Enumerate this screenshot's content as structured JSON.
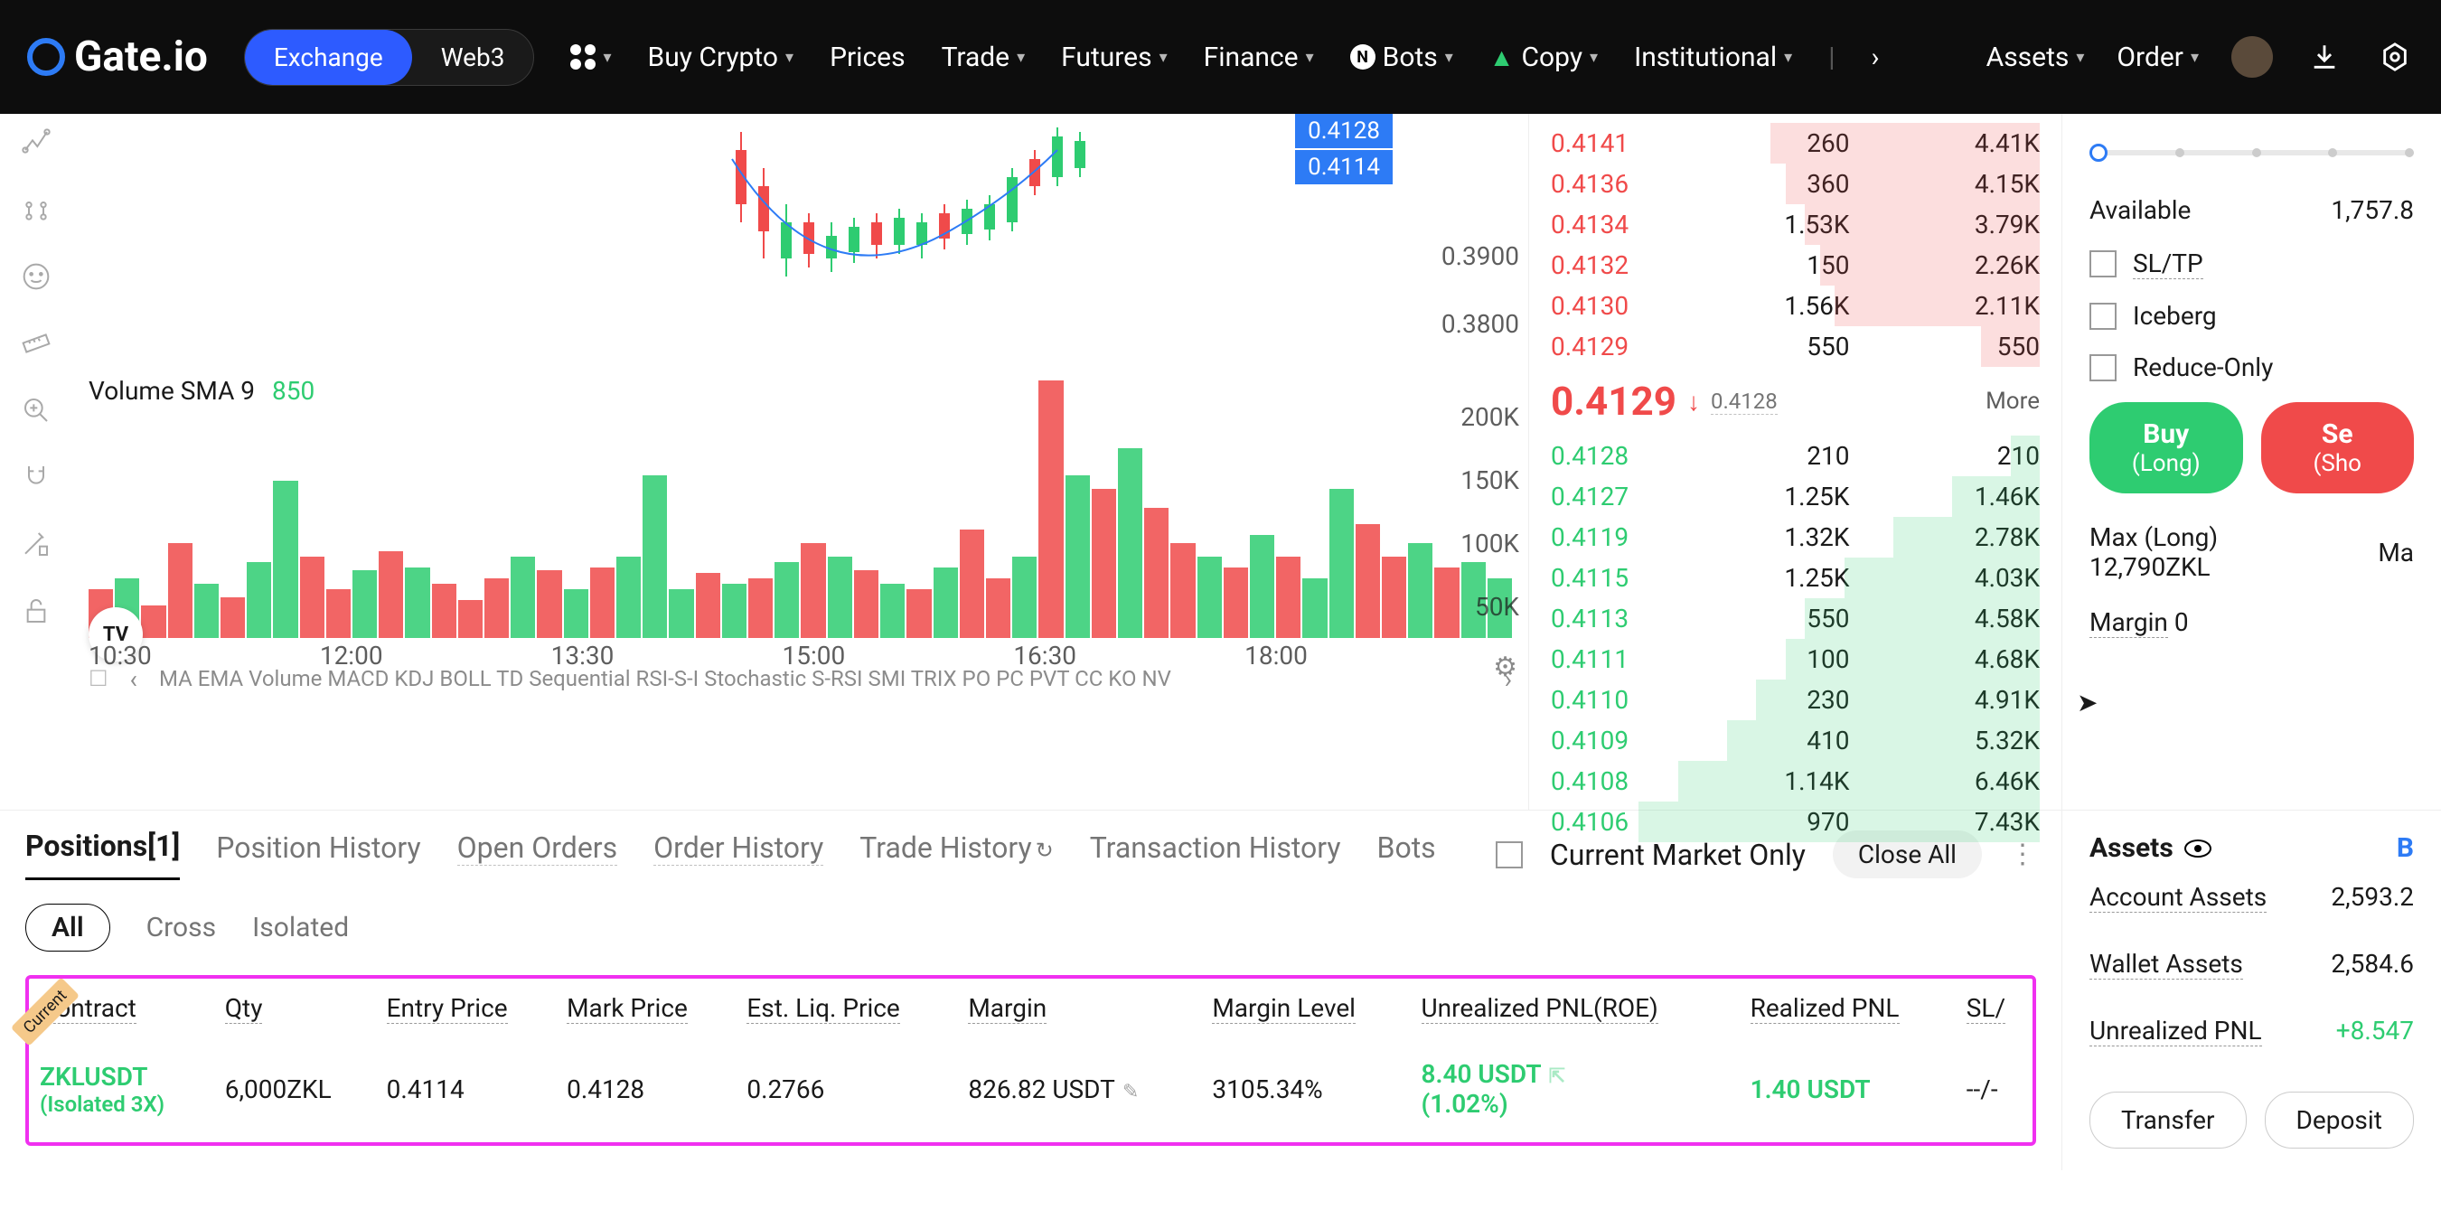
{
  "nav": {
    "brand": "Gate.io",
    "toggle": {
      "exchange": "Exchange",
      "web3": "Web3"
    },
    "items": [
      "Buy Crypto",
      "Prices",
      "Trade",
      "Futures",
      "Finance",
      "Bots",
      "Copy",
      "Institutional"
    ],
    "right": [
      "Assets",
      "Order"
    ]
  },
  "chart": {
    "price_tags": [
      "0.4128",
      "0.4114"
    ],
    "y_prices": [
      "0.3900",
      "0.3800"
    ],
    "vol_label": "Volume SMA 9",
    "vol_value": "850",
    "y_vol": [
      "200K",
      "150K",
      "100K",
      "50K"
    ],
    "times": [
      "10:30",
      "12:00",
      "13:30",
      "15:00",
      "16:30",
      "18:00"
    ],
    "indicators": [
      "MA",
      "EMA",
      "Volume",
      "MACD",
      "KDJ",
      "BOLL",
      "TD Sequential",
      "RSI-S-I",
      "Stochastic",
      "S-RSI",
      "SMI",
      "TRIX",
      "PO",
      "PC",
      "PVT",
      "CC",
      "KO",
      "NV"
    ],
    "vol_bars": [
      {
        "h": 18,
        "c": "#f04a4a"
      },
      {
        "h": 22,
        "c": "#2ecc71"
      },
      {
        "h": 12,
        "c": "#f04a4a"
      },
      {
        "h": 35,
        "c": "#f04a4a"
      },
      {
        "h": 20,
        "c": "#2ecc71"
      },
      {
        "h": 15,
        "c": "#f04a4a"
      },
      {
        "h": 28,
        "c": "#2ecc71"
      },
      {
        "h": 58,
        "c": "#2ecc71"
      },
      {
        "h": 30,
        "c": "#f04a4a"
      },
      {
        "h": 18,
        "c": "#f04a4a"
      },
      {
        "h": 25,
        "c": "#2ecc71"
      },
      {
        "h": 32,
        "c": "#f04a4a"
      },
      {
        "h": 26,
        "c": "#2ecc71"
      },
      {
        "h": 20,
        "c": "#f04a4a"
      },
      {
        "h": 14,
        "c": "#f04a4a"
      },
      {
        "h": 22,
        "c": "#f04a4a"
      },
      {
        "h": 30,
        "c": "#2ecc71"
      },
      {
        "h": 25,
        "c": "#f04a4a"
      },
      {
        "h": 18,
        "c": "#2ecc71"
      },
      {
        "h": 26,
        "c": "#f04a4a"
      },
      {
        "h": 30,
        "c": "#2ecc71"
      },
      {
        "h": 60,
        "c": "#2ecc71"
      },
      {
        "h": 18,
        "c": "#2ecc71"
      },
      {
        "h": 24,
        "c": "#f04a4a"
      },
      {
        "h": 20,
        "c": "#2ecc71"
      },
      {
        "h": 22,
        "c": "#f04a4a"
      },
      {
        "h": 28,
        "c": "#2ecc71"
      },
      {
        "h": 35,
        "c": "#f04a4a"
      },
      {
        "h": 30,
        "c": "#2ecc71"
      },
      {
        "h": 25,
        "c": "#f04a4a"
      },
      {
        "h": 20,
        "c": "#2ecc71"
      },
      {
        "h": 18,
        "c": "#f04a4a"
      },
      {
        "h": 26,
        "c": "#2ecc71"
      },
      {
        "h": 40,
        "c": "#f04a4a"
      },
      {
        "h": 22,
        "c": "#f04a4a"
      },
      {
        "h": 30,
        "c": "#2ecc71"
      },
      {
        "h": 95,
        "c": "#f04a4a"
      },
      {
        "h": 60,
        "c": "#2ecc71"
      },
      {
        "h": 55,
        "c": "#f04a4a"
      },
      {
        "h": 70,
        "c": "#2ecc71"
      },
      {
        "h": 48,
        "c": "#f04a4a"
      },
      {
        "h": 35,
        "c": "#f04a4a"
      },
      {
        "h": 30,
        "c": "#2ecc71"
      },
      {
        "h": 26,
        "c": "#f04a4a"
      },
      {
        "h": 38,
        "c": "#2ecc71"
      },
      {
        "h": 30,
        "c": "#f04a4a"
      },
      {
        "h": 22,
        "c": "#2ecc71"
      },
      {
        "h": 55,
        "c": "#2ecc71"
      },
      {
        "h": 42,
        "c": "#f04a4a"
      },
      {
        "h": 30,
        "c": "#f04a4a"
      },
      {
        "h": 35,
        "c": "#2ecc71"
      },
      {
        "h": 26,
        "c": "#f04a4a"
      },
      {
        "h": 28,
        "c": "#2ecc71"
      },
      {
        "h": 22,
        "c": "#2ecc71"
      }
    ]
  },
  "orderbook": {
    "asks": [
      {
        "p": "0.4141",
        "q": "260",
        "t": "4.41K",
        "d": 55
      },
      {
        "p": "0.4136",
        "q": "360",
        "t": "4.15K",
        "d": 52
      },
      {
        "p": "0.4134",
        "q": "1.53K",
        "t": "3.79K",
        "d": 48
      },
      {
        "p": "0.4132",
        "q": "150",
        "t": "2.26K",
        "d": 45
      },
      {
        "p": "0.4130",
        "q": "1.56K",
        "t": "2.11K",
        "d": 42
      },
      {
        "p": "0.4129",
        "q": "550",
        "t": "550",
        "d": 12
      }
    ],
    "current": {
      "price": "0.4129",
      "ref": "0.4128",
      "more": "More"
    },
    "bids": [
      {
        "p": "0.4128",
        "q": "210",
        "t": "210",
        "d": 6
      },
      {
        "p": "0.4127",
        "q": "1.25K",
        "t": "1.46K",
        "d": 18
      },
      {
        "p": "0.4119",
        "q": "1.32K",
        "t": "2.78K",
        "d": 30
      },
      {
        "p": "0.4115",
        "q": "1.25K",
        "t": "4.03K",
        "d": 40
      },
      {
        "p": "0.4113",
        "q": "550",
        "t": "4.58K",
        "d": 48
      },
      {
        "p": "0.4111",
        "q": "100",
        "t": "4.68K",
        "d": 52
      },
      {
        "p": "0.4110",
        "q": "230",
        "t": "4.91K",
        "d": 58
      },
      {
        "p": "0.4109",
        "q": "410",
        "t": "5.32K",
        "d": 64
      },
      {
        "p": "0.4108",
        "q": "1.14K",
        "t": "6.46K",
        "d": 74
      },
      {
        "p": "0.4106",
        "q": "970",
        "t": "7.43K",
        "d": 82
      }
    ]
  },
  "trade": {
    "available_lbl": "Available",
    "available_val": "1,757.8",
    "sltp": "SL/TP",
    "iceberg": "Iceberg",
    "reduce": "Reduce-Only",
    "buy": "Buy",
    "buy_sub": "(Long)",
    "sell": "Se",
    "sell_sub": "(Sho",
    "max_long_lbl": "Max (Long)",
    "max_long_val": "12,790ZKL",
    "ma": "Ma",
    "margin_lbl": "Margin",
    "margin_val": "0"
  },
  "tabs": {
    "positions": "Positions[1]",
    "pos_hist": "Position History",
    "open_orders": "Open Orders",
    "order_hist": "Order History",
    "trade_hist": "Trade History",
    "tx_hist": "Transaction History",
    "bots": "Bots",
    "cur_market": "Current Market Only",
    "close_all": "Close All",
    "all": "All",
    "cross": "Cross",
    "isolated": "Isolated"
  },
  "pos": {
    "current_tag": "Current",
    "headers": {
      "contract": "Contract",
      "qty": "Qty",
      "entry": "Entry Price",
      "mark": "Mark Price",
      "liq": "Est. Liq. Price",
      "margin": "Margin",
      "marginlvl": "Margin Level",
      "unreal": "Unrealized PNL(ROE)",
      "real": "Realized PNL",
      "sl": "SL/"
    },
    "row": {
      "symbol": "ZKLUSDT",
      "mode": "(Isolated 3X)",
      "qty": "6,000ZKL",
      "entry": "0.4114",
      "mark": "0.4128",
      "liq": "0.2766",
      "margin": "826.82 USDT",
      "marginlvl": "3105.34%",
      "unreal": "8.40 USDT",
      "roe": "(1.02%)",
      "real": "1.40 USDT",
      "sl": "--/-"
    }
  },
  "assets": {
    "title": "Assets",
    "b": "B",
    "account": "Account Assets",
    "account_v": "2,593.2",
    "wallet": "Wallet Assets",
    "wallet_v": "2,584.6",
    "unreal": "Unrealized PNL",
    "unreal_v": "+8.547",
    "transfer": "Transfer",
    "deposit": "Deposit"
  }
}
